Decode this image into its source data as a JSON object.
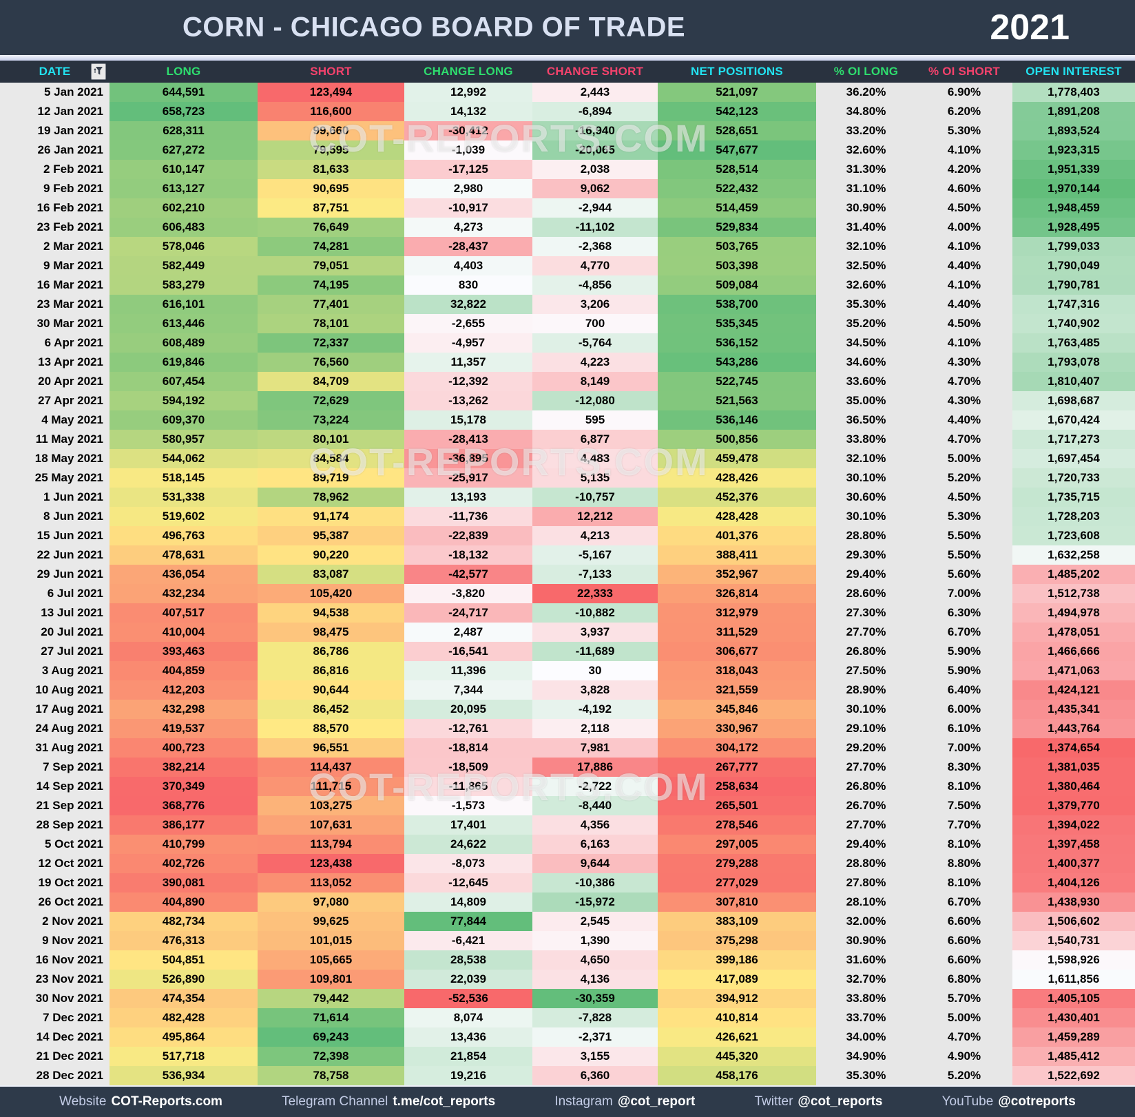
{
  "title": "CORN - CHICAGO BOARD OF TRADE",
  "year": "2021",
  "watermark": "COT-REPORTS.COM",
  "chart_data": {
    "type": "table",
    "columns": [
      {
        "key": "date",
        "label": "DATE",
        "header_color": "cyan",
        "scale": "date"
      },
      {
        "key": "long",
        "label": "LONG",
        "header_color": "green",
        "scale": "ryg"
      },
      {
        "key": "short",
        "label": "SHORT",
        "header_color": "pink",
        "scale": "ryg_inv"
      },
      {
        "key": "change_long",
        "label": "CHANGE LONG",
        "header_color": "green",
        "scale": "diverge"
      },
      {
        "key": "change_short",
        "label": "CHANGE SHORT",
        "header_color": "pink",
        "scale": "diverge_inv"
      },
      {
        "key": "net_positions",
        "label": "NET POSITIONS",
        "header_color": "cyan",
        "scale": "ryg"
      },
      {
        "key": "oi_long_pct",
        "label": "% OI LONG",
        "header_color": "green",
        "scale": "none"
      },
      {
        "key": "oi_short_pct",
        "label": "% OI SHORT",
        "header_color": "pink",
        "scale": "none"
      },
      {
        "key": "open_interest",
        "label": "OPEN INTEREST",
        "header_color": "cyan",
        "scale": "rwg"
      }
    ],
    "rows": [
      [
        "5 Jan 2021",
        "644,591",
        "123,494",
        "12,992",
        "2,443",
        "521,097",
        "36.20%",
        "6.90%",
        "1,778,403"
      ],
      [
        "12 Jan 2021",
        "658,723",
        "116,600",
        "14,132",
        "-6,894",
        "542,123",
        "34.80%",
        "6.20%",
        "1,891,208"
      ],
      [
        "19 Jan 2021",
        "628,311",
        "99,660",
        "-30,412",
        "-16,940",
        "528,651",
        "33.20%",
        "5.30%",
        "1,893,524"
      ],
      [
        "26 Jan 2021",
        "627,272",
        "79,595",
        "-1,039",
        "-20,065",
        "547,677",
        "32.60%",
        "4.10%",
        "1,923,315"
      ],
      [
        "2 Feb 2021",
        "610,147",
        "81,633",
        "-17,125",
        "2,038",
        "528,514",
        "31.30%",
        "4.20%",
        "1,951,339"
      ],
      [
        "9 Feb 2021",
        "613,127",
        "90,695",
        "2,980",
        "9,062",
        "522,432",
        "31.10%",
        "4.60%",
        "1,970,144"
      ],
      [
        "16 Feb 2021",
        "602,210",
        "87,751",
        "-10,917",
        "-2,944",
        "514,459",
        "30.90%",
        "4.50%",
        "1,948,459"
      ],
      [
        "23 Feb 2021",
        "606,483",
        "76,649",
        "4,273",
        "-11,102",
        "529,834",
        "31.40%",
        "4.00%",
        "1,928,495"
      ],
      [
        "2 Mar 2021",
        "578,046",
        "74,281",
        "-28,437",
        "-2,368",
        "503,765",
        "32.10%",
        "4.10%",
        "1,799,033"
      ],
      [
        "9 Mar 2021",
        "582,449",
        "79,051",
        "4,403",
        "4,770",
        "503,398",
        "32.50%",
        "4.40%",
        "1,790,049"
      ],
      [
        "16 Mar 2021",
        "583,279",
        "74,195",
        "830",
        "-4,856",
        "509,084",
        "32.60%",
        "4.10%",
        "1,790,781"
      ],
      [
        "23 Mar 2021",
        "616,101",
        "77,401",
        "32,822",
        "3,206",
        "538,700",
        "35.30%",
        "4.40%",
        "1,747,316"
      ],
      [
        "30 Mar 2021",
        "613,446",
        "78,101",
        "-2,655",
        "700",
        "535,345",
        "35.20%",
        "4.50%",
        "1,740,902"
      ],
      [
        "6 Apr 2021",
        "608,489",
        "72,337",
        "-4,957",
        "-5,764",
        "536,152",
        "34.50%",
        "4.10%",
        "1,763,485"
      ],
      [
        "13 Apr 2021",
        "619,846",
        "76,560",
        "11,357",
        "4,223",
        "543,286",
        "34.60%",
        "4.30%",
        "1,793,078"
      ],
      [
        "20 Apr 2021",
        "607,454",
        "84,709",
        "-12,392",
        "8,149",
        "522,745",
        "33.60%",
        "4.70%",
        "1,810,407"
      ],
      [
        "27 Apr 2021",
        "594,192",
        "72,629",
        "-13,262",
        "-12,080",
        "521,563",
        "35.00%",
        "4.30%",
        "1,698,687"
      ],
      [
        "4 May 2021",
        "609,370",
        "73,224",
        "15,178",
        "595",
        "536,146",
        "36.50%",
        "4.40%",
        "1,670,424"
      ],
      [
        "11 May 2021",
        "580,957",
        "80,101",
        "-28,413",
        "6,877",
        "500,856",
        "33.80%",
        "4.70%",
        "1,717,273"
      ],
      [
        "18 May 2021",
        "544,062",
        "84,584",
        "-36,895",
        "4,483",
        "459,478",
        "32.10%",
        "5.00%",
        "1,697,454"
      ],
      [
        "25 May 2021",
        "518,145",
        "89,719",
        "-25,917",
        "5,135",
        "428,426",
        "30.10%",
        "5.20%",
        "1,720,733"
      ],
      [
        "1 Jun 2021",
        "531,338",
        "78,962",
        "13,193",
        "-10,757",
        "452,376",
        "30.60%",
        "4.50%",
        "1,735,715"
      ],
      [
        "8 Jun 2021",
        "519,602",
        "91,174",
        "-11,736",
        "12,212",
        "428,428",
        "30.10%",
        "5.30%",
        "1,728,203"
      ],
      [
        "15 Jun 2021",
        "496,763",
        "95,387",
        "-22,839",
        "4,213",
        "401,376",
        "28.80%",
        "5.50%",
        "1,723,608"
      ],
      [
        "22 Jun 2021",
        "478,631",
        "90,220",
        "-18,132",
        "-5,167",
        "388,411",
        "29.30%",
        "5.50%",
        "1,632,258"
      ],
      [
        "29 Jun 2021",
        "436,054",
        "83,087",
        "-42,577",
        "-7,133",
        "352,967",
        "29.40%",
        "5.60%",
        "1,485,202"
      ],
      [
        "6 Jul 2021",
        "432,234",
        "105,420",
        "-3,820",
        "22,333",
        "326,814",
        "28.60%",
        "7.00%",
        "1,512,738"
      ],
      [
        "13 Jul 2021",
        "407,517",
        "94,538",
        "-24,717",
        "-10,882",
        "312,979",
        "27.30%",
        "6.30%",
        "1,494,978"
      ],
      [
        "20 Jul 2021",
        "410,004",
        "98,475",
        "2,487",
        "3,937",
        "311,529",
        "27.70%",
        "6.70%",
        "1,478,051"
      ],
      [
        "27 Jul 2021",
        "393,463",
        "86,786",
        "-16,541",
        "-11,689",
        "306,677",
        "26.80%",
        "5.90%",
        "1,466,666"
      ],
      [
        "3 Aug 2021",
        "404,859",
        "86,816",
        "11,396",
        "30",
        "318,043",
        "27.50%",
        "5.90%",
        "1,471,063"
      ],
      [
        "10 Aug 2021",
        "412,203",
        "90,644",
        "7,344",
        "3,828",
        "321,559",
        "28.90%",
        "6.40%",
        "1,424,121"
      ],
      [
        "17 Aug 2021",
        "432,298",
        "86,452",
        "20,095",
        "-4,192",
        "345,846",
        "30.10%",
        "6.00%",
        "1,435,341"
      ],
      [
        "24 Aug 2021",
        "419,537",
        "88,570",
        "-12,761",
        "2,118",
        "330,967",
        "29.10%",
        "6.10%",
        "1,443,764"
      ],
      [
        "31 Aug 2021",
        "400,723",
        "96,551",
        "-18,814",
        "7,981",
        "304,172",
        "29.20%",
        "7.00%",
        "1,374,654"
      ],
      [
        "7 Sep 2021",
        "382,214",
        "114,437",
        "-18,509",
        "17,886",
        "267,777",
        "27.70%",
        "8.30%",
        "1,381,035"
      ],
      [
        "14 Sep 2021",
        "370,349",
        "111,715",
        "-11,865",
        "-2,722",
        "258,634",
        "26.80%",
        "8.10%",
        "1,380,464"
      ],
      [
        "21 Sep 2021",
        "368,776",
        "103,275",
        "-1,573",
        "-8,440",
        "265,501",
        "26.70%",
        "7.50%",
        "1,379,770"
      ],
      [
        "28 Sep 2021",
        "386,177",
        "107,631",
        "17,401",
        "4,356",
        "278,546",
        "27.70%",
        "7.70%",
        "1,394,022"
      ],
      [
        "5 Oct 2021",
        "410,799",
        "113,794",
        "24,622",
        "6,163",
        "297,005",
        "29.40%",
        "8.10%",
        "1,397,458"
      ],
      [
        "12 Oct 2021",
        "402,726",
        "123,438",
        "-8,073",
        "9,644",
        "279,288",
        "28.80%",
        "8.80%",
        "1,400,377"
      ],
      [
        "19 Oct 2021",
        "390,081",
        "113,052",
        "-12,645",
        "-10,386",
        "277,029",
        "27.80%",
        "8.10%",
        "1,404,126"
      ],
      [
        "26 Oct 2021",
        "404,890",
        "97,080",
        "14,809",
        "-15,972",
        "307,810",
        "28.10%",
        "6.70%",
        "1,438,930"
      ],
      [
        "2 Nov 2021",
        "482,734",
        "99,625",
        "77,844",
        "2,545",
        "383,109",
        "32.00%",
        "6.60%",
        "1,506,602"
      ],
      [
        "9 Nov 2021",
        "476,313",
        "101,015",
        "-6,421",
        "1,390",
        "375,298",
        "30.90%",
        "6.60%",
        "1,540,731"
      ],
      [
        "16 Nov 2021",
        "504,851",
        "105,665",
        "28,538",
        "4,650",
        "399,186",
        "31.60%",
        "6.60%",
        "1,598,926"
      ],
      [
        "23 Nov 2021",
        "526,890",
        "109,801",
        "22,039",
        "4,136",
        "417,089",
        "32.70%",
        "6.80%",
        "1,611,856"
      ],
      [
        "30 Nov 2021",
        "474,354",
        "79,442",
        "-52,536",
        "-30,359",
        "394,912",
        "33.80%",
        "5.70%",
        "1,405,105"
      ],
      [
        "7 Dec 2021",
        "482,428",
        "71,614",
        "8,074",
        "-7,828",
        "410,814",
        "33.70%",
        "5.00%",
        "1,430,401"
      ],
      [
        "14 Dec 2021",
        "495,864",
        "69,243",
        "13,436",
        "-2,371",
        "426,621",
        "34.00%",
        "4.70%",
        "1,459,289"
      ],
      [
        "21 Dec 2021",
        "517,718",
        "72,398",
        "21,854",
        "3,155",
        "445,320",
        "34.90%",
        "4.90%",
        "1,485,412"
      ],
      [
        "28 Dec 2021",
        "536,934",
        "78,758",
        "19,216",
        "6,360",
        "458,176",
        "35.30%",
        "5.20%",
        "1,522,692"
      ]
    ]
  },
  "footer": {
    "items": [
      {
        "label": "Website",
        "value": "COT-Reports.com"
      },
      {
        "label": "Telegram Channel",
        "value": "t.me/cot_reports"
      },
      {
        "label": "Instagram",
        "value": "@cot_report"
      },
      {
        "label": "Twitter",
        "value": "@cot_reports"
      },
      {
        "label": "YouTube",
        "value": "@cotreports"
      }
    ]
  },
  "colors": {
    "titlebar_bg": "#2E3A4A",
    "header_bg": "#29323F",
    "footer_bg": "#2E3A4A",
    "header_cyan": "#22E2F0",
    "header_green": "#2EDD6E",
    "header_pink": "#F4426C",
    "title_text": "#D9E1F2",
    "date_col_bg": "#E9E9E9",
    "pct_col_bg": "#E7E7E7",
    "scale_red": "#F8696B",
    "scale_yellow": "#FFEB84",
    "scale_green": "#63BE7B",
    "scale_white": "#FCFCFF"
  }
}
